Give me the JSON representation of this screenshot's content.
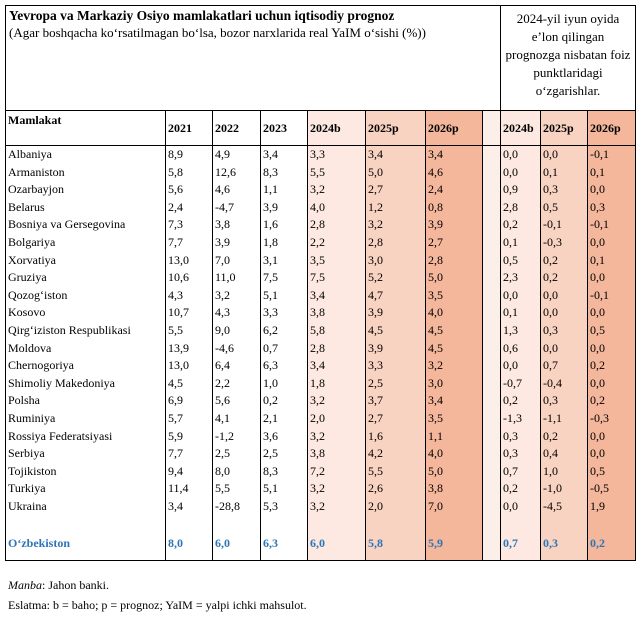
{
  "header": {
    "title": "Yevropa va Markaziy Osiyo mamlakatlari uchun iqtisodiy prognoz",
    "subtitle": "(Agar boshqacha koʻrsatilmagan boʻlsa, bozor narxlarida real YaIM oʻsishi (%))",
    "note_right": "2024-yil iyun oyida e’lon qilingan prognozga nisbatan foiz punktlaridagi o‘zgarishlar."
  },
  "table": {
    "columns": [
      "Mamlakat",
      "2021",
      "2022",
      "2023",
      "2024b",
      "2025p",
      "2026p",
      "2024b",
      "2025p",
      "2026p"
    ],
    "rows": [
      [
        "Albaniya",
        "8,9",
        "4,9",
        "3,4",
        "3,3",
        "3,4",
        "3,4",
        "0,0",
        "0,0",
        "-0,1"
      ],
      [
        "Armaniston",
        "5,8",
        "12,6",
        "8,3",
        "5,5",
        "5,0",
        "4,6",
        "0,0",
        "0,1",
        "0,1"
      ],
      [
        "Ozarbayjon",
        "5,6",
        "4,6",
        "1,1",
        "3,2",
        "2,7",
        "2,4",
        "0,9",
        "0,3",
        "0,0"
      ],
      [
        "Belarus",
        "2,4",
        "-4,7",
        "3,9",
        "4,0",
        "1,2",
        "0,8",
        "2,8",
        "0,5",
        "0,3"
      ],
      [
        "Bosniya va Gersegovina",
        "7,3",
        "3,8",
        "1,6",
        "2,8",
        "3,2",
        "3,9",
        "0,2",
        "-0,1",
        "-0,1"
      ],
      [
        "Bolgariya",
        "7,7",
        "3,9",
        "1,8",
        "2,2",
        "2,8",
        "2,7",
        "0,1",
        "-0,3",
        "0,0"
      ],
      [
        "Xorvatiya",
        "13,0",
        "7,0",
        "3,1",
        "3,5",
        "3,0",
        "2,8",
        "0,5",
        "0,2",
        "0,1"
      ],
      [
        "Gruziya",
        "10,6",
        "11,0",
        "7,5",
        "7,5",
        "5,2",
        "5,0",
        "2,3",
        "0,2",
        "0,0"
      ],
      [
        "Qozog‘iston",
        "4,3",
        "3,2",
        "5,1",
        "3,4",
        "4,7",
        "3,5",
        "0,0",
        "0,0",
        "-0,1"
      ],
      [
        "Kosovo",
        "10,7",
        "4,3",
        "3,3",
        "3,8",
        "3,9",
        "4,0",
        "0,1",
        "0,0",
        "0,0"
      ],
      [
        "Qirg‘iziston Respublikasi",
        "5,5",
        "9,0",
        "6,2",
        "5,8",
        "4,5",
        "4,5",
        "1,3",
        "0,3",
        "0,5"
      ],
      [
        "Moldova",
        "13,9",
        "-4,6",
        "0,7",
        "2,8",
        "3,9",
        "4,5",
        "0,6",
        "0,0",
        "0,0"
      ],
      [
        "Chernogoriya",
        "13,0",
        "6,4",
        "6,3",
        "3,4",
        "3,3",
        "3,2",
        "0,0",
        "0,7",
        "0,2"
      ],
      [
        "Shimoliy Makedoniya",
        "4,5",
        "2,2",
        "1,0",
        "1,8",
        "2,5",
        "3,0",
        "-0,7",
        "-0,4",
        "0,0"
      ],
      [
        "Polsha",
        "6,9",
        "5,6",
        "0,2",
        "3,2",
        "3,7",
        "3,4",
        "0,2",
        "0,3",
        "0,2"
      ],
      [
        "Ruminiya",
        "5,7",
        "4,1",
        "2,1",
        "2,0",
        "2,7",
        "3,5",
        "-1,3",
        "-1,1",
        "-0,3"
      ],
      [
        "Rossiya Federatsiyasi",
        "5,9",
        "-1,2",
        "3,6",
        "3,2",
        "1,6",
        "1,1",
        "0,3",
        "0,2",
        "0,0"
      ],
      [
        "Serbiya",
        "7,7",
        "2,5",
        "2,5",
        "3,8",
        "4,2",
        "4,0",
        "0,3",
        "0,4",
        "0,0"
      ],
      [
        "Tojikiston",
        "9,4",
        "8,0",
        "8,3",
        "7,2",
        "5,5",
        "5,0",
        "0,7",
        "1,0",
        "0,5"
      ],
      [
        "Turkiya",
        "11,4",
        "5,5",
        "5,1",
        "3,2",
        "2,6",
        "3,8",
        "0,2",
        "-1,0",
        "-0,5"
      ],
      [
        "Ukraina",
        "3,4",
        "-28,8",
        "5,3",
        "3,2",
        "2,0",
        "7,0",
        "0,0",
        "-4,5",
        "1,9"
      ]
    ],
    "highlight_row": [
      "Oʻzbekiston",
      "8,0",
      "6,0",
      "6,3",
      "6,0",
      "5,8",
      "5,9",
      "0,7",
      "0,3",
      "0,2"
    ]
  },
  "footer": {
    "source_label": "Manba",
    "source_text": ": Jahon banki.",
    "note": "Eslatma: b = baho; p = prognoz; YaIM = yalpi ichki mahsulot."
  }
}
